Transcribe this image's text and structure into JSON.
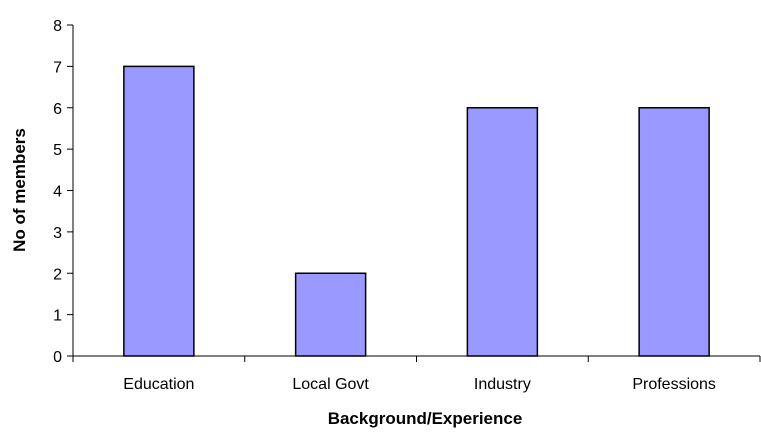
{
  "chart_data": {
    "type": "bar",
    "title": "",
    "xlabel": "Background/Experience",
    "ylabel": "No of members",
    "categories": [
      "Education",
      "Local Govt",
      "Industry",
      "Professions"
    ],
    "values": [
      7,
      2,
      6,
      6
    ],
    "ylim": [
      0,
      8
    ],
    "yticks": [
      "0",
      "1",
      "2",
      "3",
      "4",
      "5",
      "6",
      "7",
      "8"
    ],
    "grid": false,
    "legend": "none",
    "bar_color": "#9999ff",
    "bar_border_color": "#000000"
  }
}
